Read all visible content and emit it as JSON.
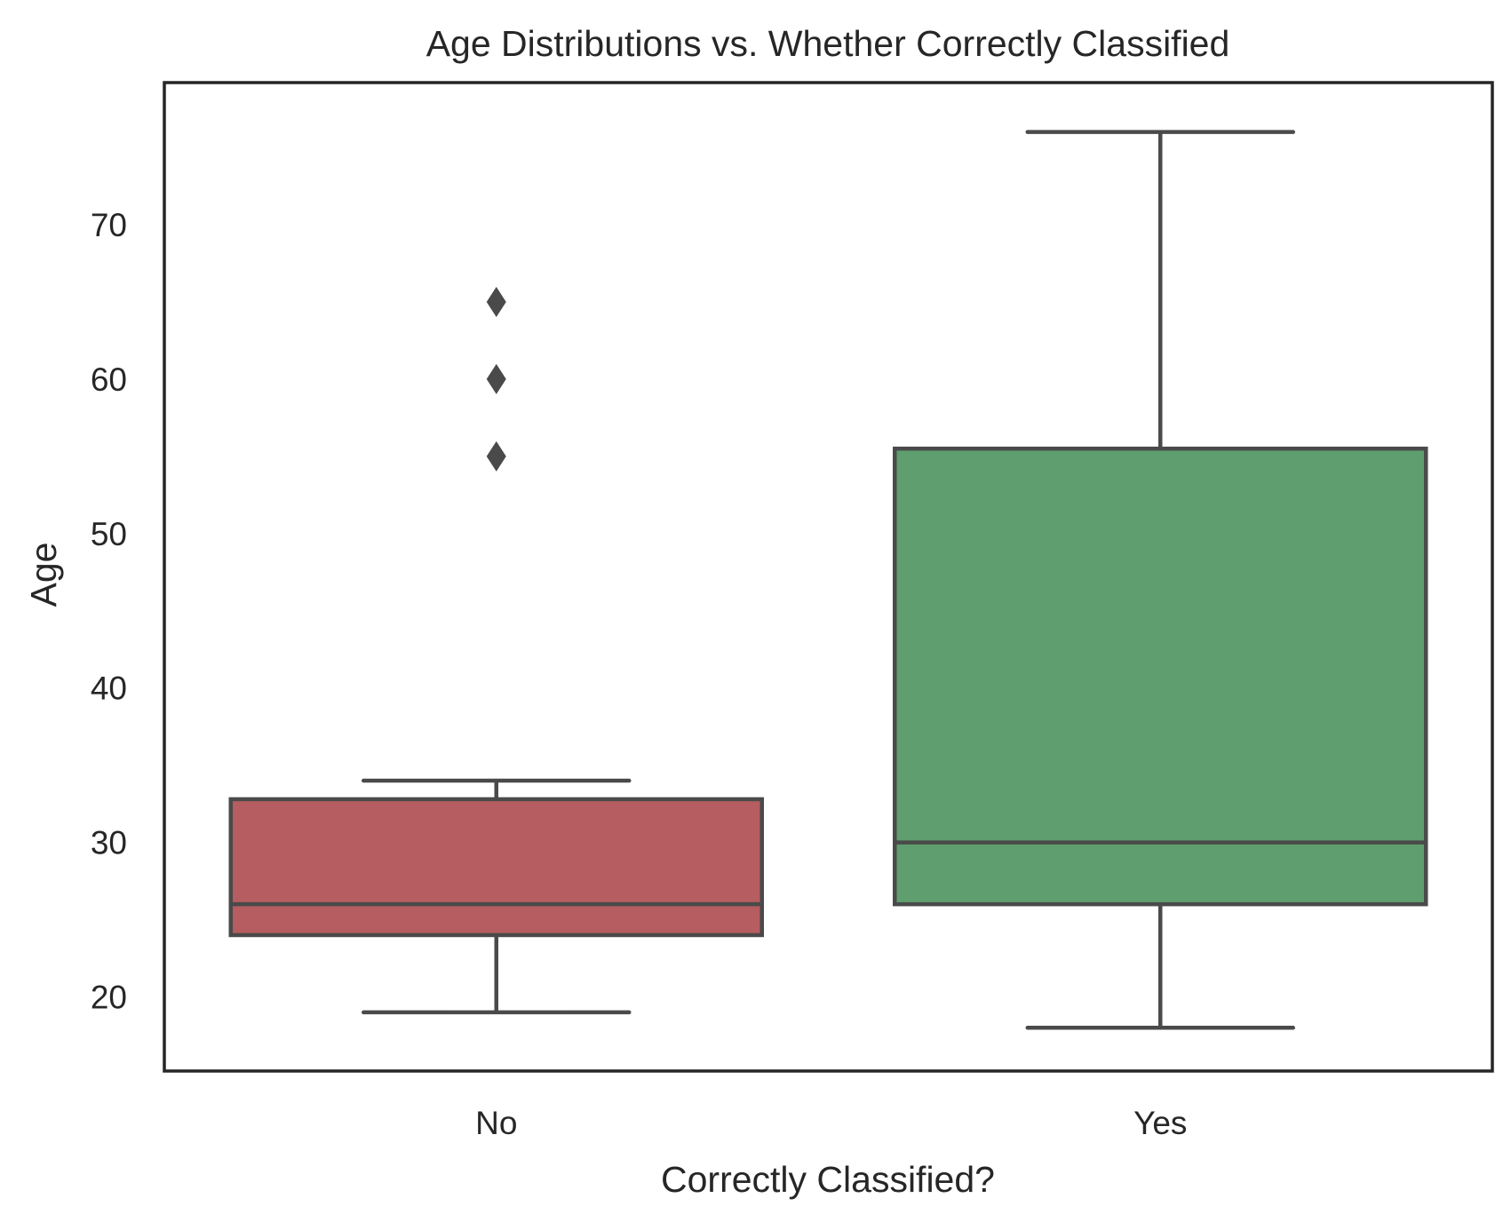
{
  "chart_data": {
    "type": "box",
    "title": "Age Distributions vs. Whether Correctly Classified",
    "xlabel": "Correctly Classified?",
    "ylabel": "Age",
    "ylim": [
      15.2,
      79.2
    ],
    "yticks": [
      20,
      30,
      40,
      50,
      60,
      70
    ],
    "grid": false,
    "categories": [
      "No",
      "Yes"
    ],
    "boxes": [
      {
        "category": "No",
        "color": "#b55d60",
        "whisker_low": 19,
        "q1": 24,
        "median": 26,
        "q3": 32.8,
        "whisker_high": 34,
        "outliers": [
          55,
          60,
          65
        ]
      },
      {
        "category": "Yes",
        "color": "#5f9e6e",
        "whisker_low": 18,
        "q1": 26,
        "median": 30,
        "q3": 55.5,
        "whisker_high": 76,
        "outliers": []
      }
    ],
    "line_color": "#4a4a4a",
    "frame_color": "#262626"
  }
}
